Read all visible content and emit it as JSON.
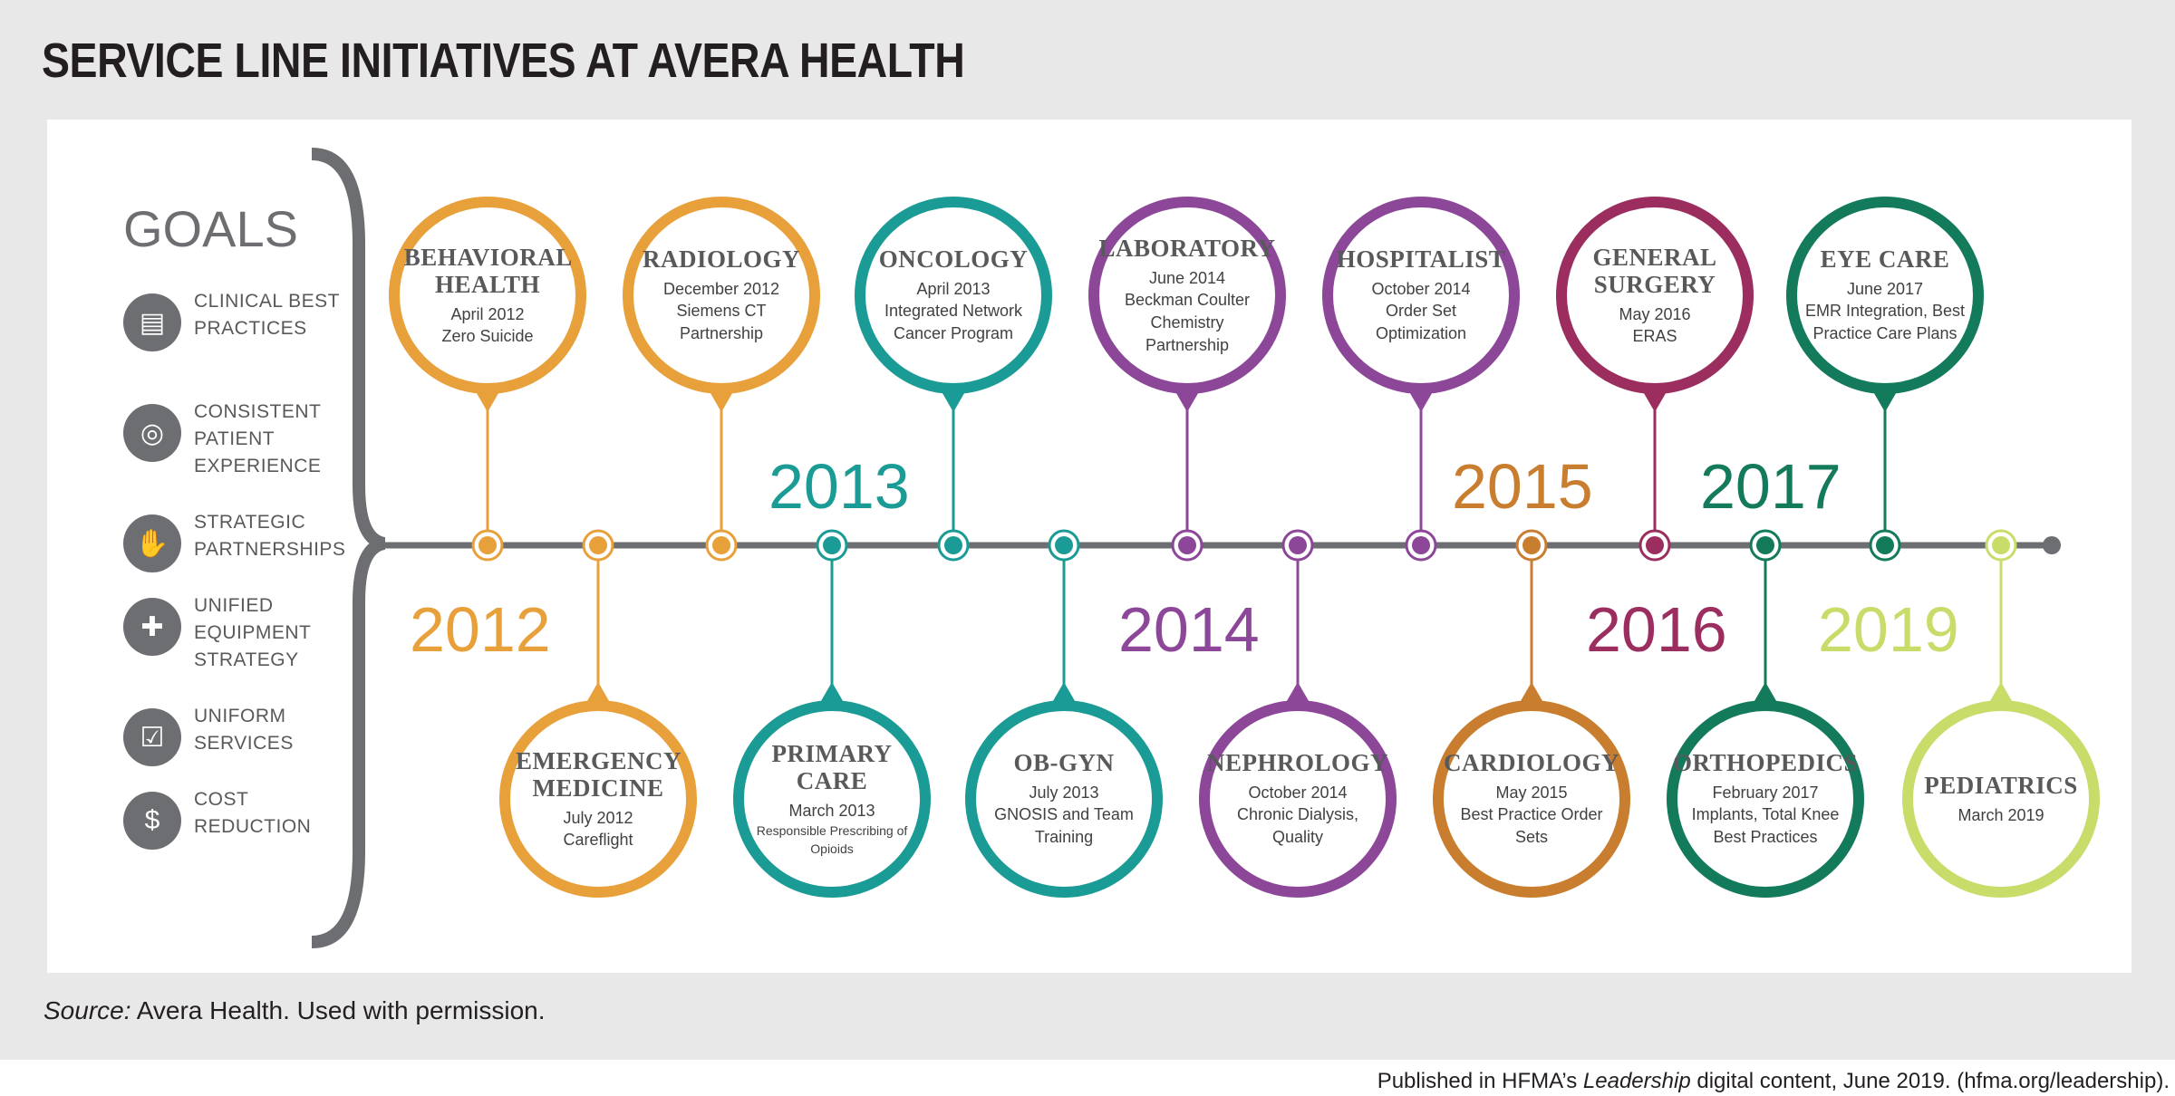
{
  "title": "SERVICE LINE INITIATIVES AT AVERA HEALTH",
  "source": {
    "label": "Source:",
    "text": " Avera Health. Used with permission."
  },
  "published": {
    "prefix": "Published in HFMA’s ",
    "italic": "Leadership",
    "suffix": " digital content, June 2019.  (hfma.org/leadership)."
  },
  "goals": {
    "title": "GOALS",
    "items": [
      {
        "label": "CLINICAL BEST PRACTICES",
        "icon": "book-icon",
        "glyph": "▤"
      },
      {
        "label": "CONSISTENT PATIENT EXPERIENCE",
        "icon": "target-icon",
        "glyph": "◎"
      },
      {
        "label": "STRATEGIC PARTNERSHIPS",
        "icon": "handshake-icon",
        "glyph": "✋"
      },
      {
        "label": "UNIFIED EQUIPMENT STRATEGY",
        "icon": "hospital-icon",
        "glyph": "✚"
      },
      {
        "label": "UNIFORM SERVICES",
        "icon": "clipboard-icon",
        "glyph": "☑"
      },
      {
        "label": "COST REDUCTION",
        "icon": "dollar-icon",
        "glyph": "$"
      }
    ]
  },
  "colors": {
    "2012": "#e8a03a",
    "2013": "#1b9b95",
    "2014": "#8c4799",
    "2015": "#c97d2e",
    "2016": "#9b2d5f",
    "2017": "#137a5c",
    "2019": "#c8dc6a",
    "axis": "#6d6e71"
  },
  "years": [
    {
      "label": "2012",
      "color": "#e8a03a"
    },
    {
      "label": "2013",
      "color": "#1b9b95"
    },
    {
      "label": "2014",
      "color": "#8c4799"
    },
    {
      "label": "2015",
      "color": "#c97d2e"
    },
    {
      "label": "2016",
      "color": "#9b2d5f"
    },
    {
      "label": "2017",
      "color": "#137a5c"
    },
    {
      "label": "2019",
      "color": "#c8dc6a"
    }
  ],
  "initiatives": [
    {
      "name": "BEHAVIORAL HEALTH",
      "date": "April 2012",
      "desc": "Zero Suicide",
      "color": "#e8a03a"
    },
    {
      "name": "EMERGENCY MEDICINE",
      "date": "July 2012",
      "desc": "Careflight",
      "color": "#e8a03a"
    },
    {
      "name": "RADIOLOGY",
      "date": "December 2012",
      "desc": "Siemens CT Partnership",
      "color": "#e8a03a"
    },
    {
      "name": "PRIMARY CARE",
      "date": "March 2013",
      "desc": "Responsible Prescribing of Opioids",
      "color": "#1b9b95"
    },
    {
      "name": "ONCOLOGY",
      "date": "April 2013",
      "desc": "Integrated Network Cancer Program",
      "color": "#1b9b95"
    },
    {
      "name": "OB-GYN",
      "date": "July 2013",
      "desc": "GNOSIS and Team Training",
      "color": "#1b9b95"
    },
    {
      "name": "LABORATORY",
      "date": "June 2014",
      "desc": "Beckman Coulter Chemistry Partnership",
      "color": "#8c4799"
    },
    {
      "name": "NEPHROLOGY",
      "date": "October 2014",
      "desc": "Chronic Dialysis, Quality",
      "color": "#8c4799"
    },
    {
      "name": "HOSPITALIST",
      "date": "October 2014",
      "desc": "Order Set Optimization",
      "color": "#8c4799"
    },
    {
      "name": "CARDIOLOGY",
      "date": "May 2015",
      "desc": "Best Practice Order Sets",
      "color": "#c97d2e"
    },
    {
      "name": "GENERAL SURGERY",
      "date": "May 2016",
      "desc": "ERAS",
      "color": "#9b2d5f"
    },
    {
      "name": "ORTHOPEDICS",
      "date": "February 2017",
      "desc": "Implants, Total Knee Best Practices",
      "color": "#137a5c"
    },
    {
      "name": "EYE CARE",
      "date": "June 2017",
      "desc": "EMR Integration, Best Practice Care Plans",
      "color": "#137a5c"
    },
    {
      "name": "PEDIATRICS",
      "date": "March 2019",
      "desc": "",
      "color": "#c8dc6a"
    }
  ]
}
